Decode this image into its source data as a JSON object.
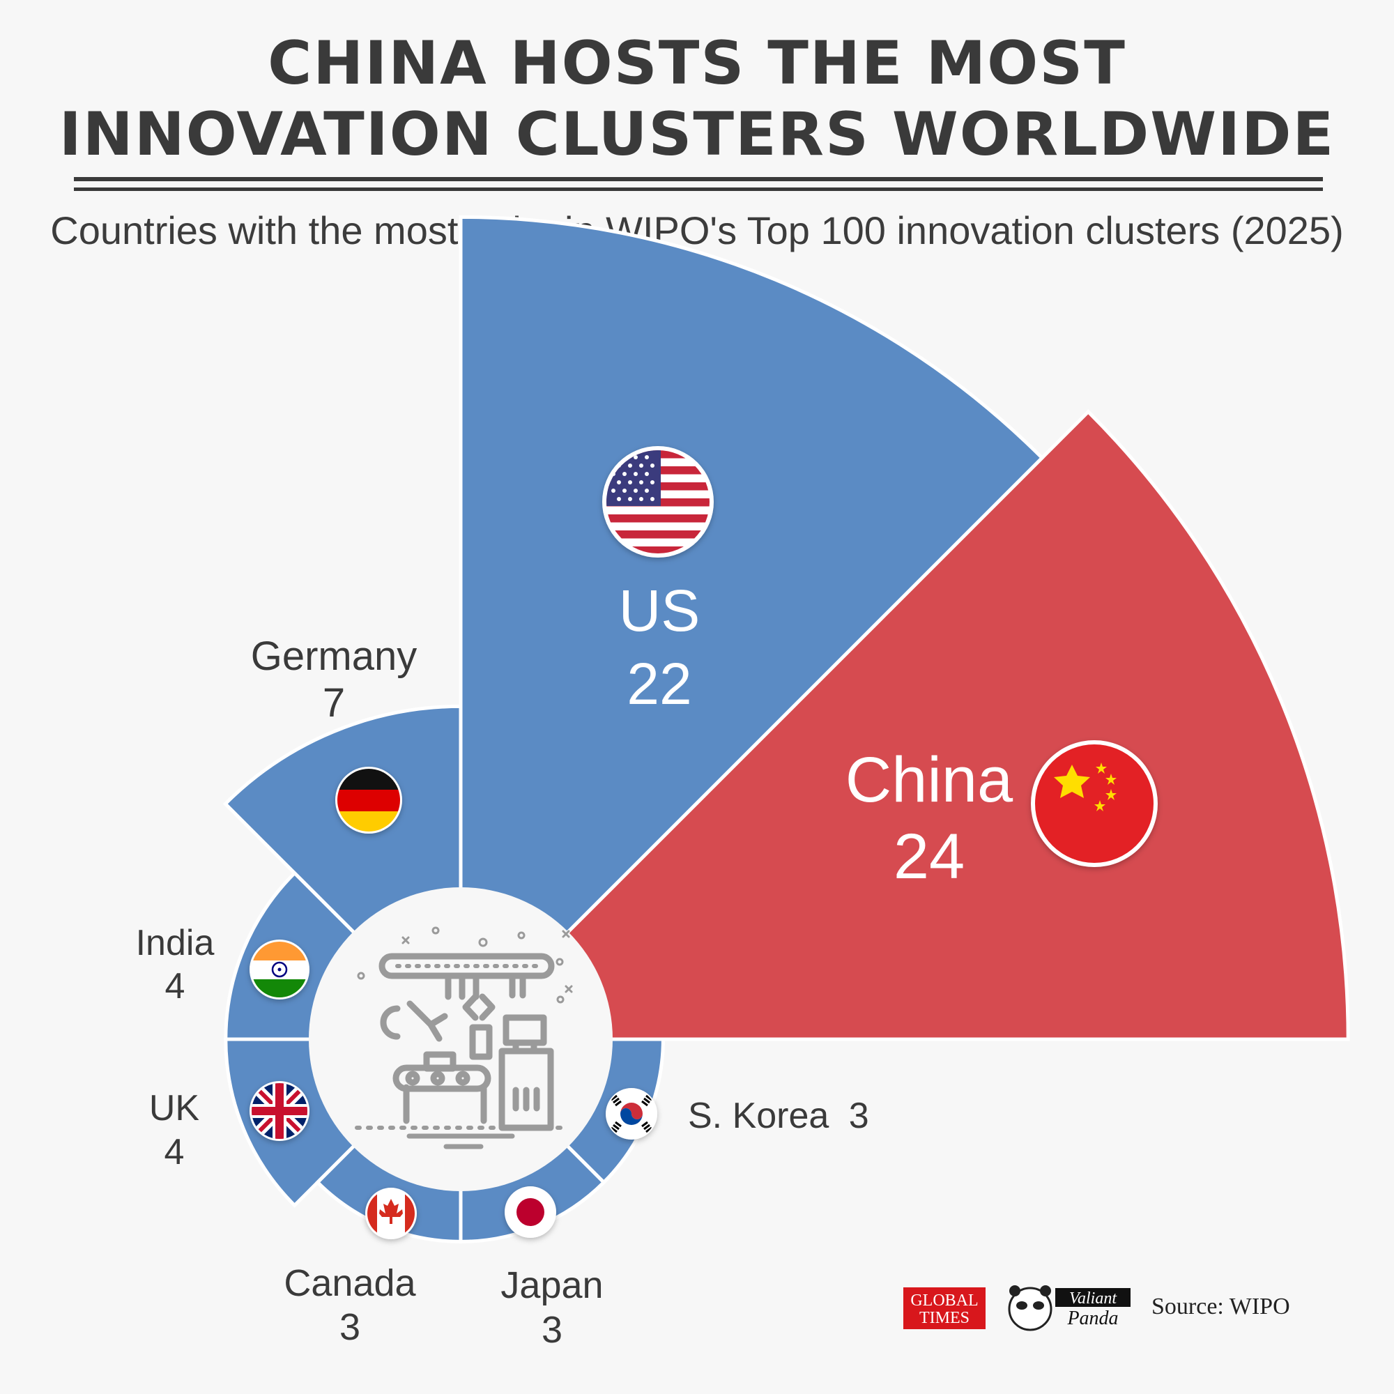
{
  "header": {
    "title_line1": "CHINA HOSTS THE MOST",
    "title_line2": "INNOVATION CLUSTERS WORLDWIDE",
    "subtitle": "Countries with the most hubs in WIPO's Top 100 innovation clusters (2025)"
  },
  "chart_data": {
    "type": "radial-bar",
    "title": "Countries with the most hubs in WIPO's Top 100 innovation clusters (2025)",
    "categories": [
      "China",
      "US",
      "Germany",
      "India",
      "UK",
      "Canada",
      "Japan",
      "S. Korea"
    ],
    "values": [
      24,
      22,
      7,
      4,
      4,
      3,
      3,
      3
    ],
    "labels": [
      {
        "name": "China",
        "value": "24"
      },
      {
        "name": "US",
        "value": "22"
      },
      {
        "name": "Germany",
        "value": "7"
      },
      {
        "name": "India",
        "value": "4"
      },
      {
        "name": "UK",
        "value": "4"
      },
      {
        "name": "Canada",
        "value": "3"
      },
      {
        "name": "Japan",
        "value": "3"
      },
      {
        "name": "S. Korea",
        "value": "3"
      }
    ],
    "colors": {
      "china": "#d64b50",
      "others": "#5b8bc4"
    },
    "unit": "hubs"
  },
  "footer": {
    "logo1_line1": "GLOBAL",
    "logo1_line2": "TIMES",
    "logo2_line1": "Valiant",
    "logo2_line2": "Panda",
    "source": "Source: WIPO"
  }
}
